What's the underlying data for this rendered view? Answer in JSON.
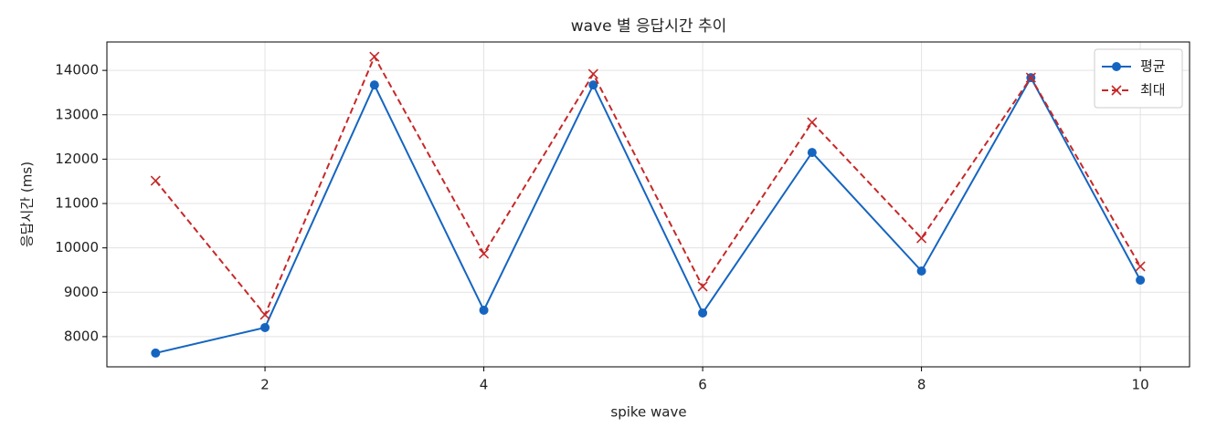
{
  "chart_data": {
    "type": "line",
    "title": "wave 별 응답시간 추이",
    "x_label": "spike wave",
    "y_label": "응답시간 (ms)",
    "x": [
      1,
      2,
      3,
      4,
      5,
      6,
      7,
      8,
      9,
      10
    ],
    "series": [
      {
        "name": "평균",
        "color": "#1565c0",
        "marker": "circle",
        "linestyle": "solid",
        "values": [
          7630,
          8205,
          13671,
          8596,
          13671,
          8534,
          12150,
          9479,
          13836,
          9274
        ]
      },
      {
        "name": "최대",
        "color": "#c62828",
        "marker": "x",
        "linestyle": "dashed",
        "values": [
          11514,
          8493,
          14308,
          9870,
          13918,
          9130,
          12829,
          10219,
          13836,
          9582
        ]
      }
    ],
    "xlim": [
      0.555,
      10.45
    ],
    "xticks": [
      2,
      4,
      6,
      8,
      10
    ],
    "ylim": [
      7320,
      14640
    ],
    "yticks": [
      8000,
      9000,
      10000,
      11000,
      12000,
      13000,
      14000
    ],
    "grid": true,
    "legend": "upper-right"
  }
}
